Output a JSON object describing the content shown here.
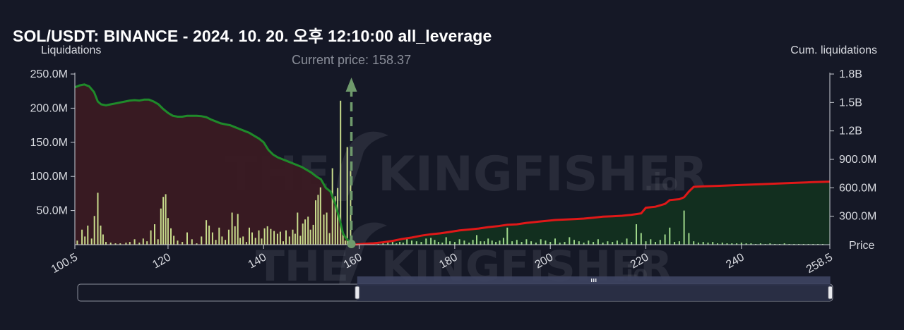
{
  "title": "SOL/USDT: BINANCE - 2024. 10. 20. 오후 12:10:00 all_leverage",
  "watermark": {
    "brand": "THE KINGFISHER",
    "suffix": ".io"
  },
  "chart_data": {
    "type": "bar",
    "current_price_label": "Current price: 158.37",
    "current_price": 158.37,
    "xlabel": "Price",
    "ylabel_left": "Liquidations",
    "ylabel_right": "Cum. liquidations",
    "xlim": [
      100.5,
      258.5
    ],
    "ylim_left": [
      0,
      250000000
    ],
    "ylim_right": [
      0,
      1800000000
    ],
    "x_ticks": [
      "100.5",
      "120",
      "140",
      "160",
      "180",
      "200",
      "220",
      "240",
      "258.5"
    ],
    "x_tick_values": [
      100.5,
      120,
      140,
      160,
      180,
      200,
      220,
      240,
      258.5
    ],
    "y_left_ticks": [
      "50.0M",
      "100.0M",
      "150.0M",
      "200.0M",
      "250.0M"
    ],
    "y_left_tick_values": [
      50000000,
      100000000,
      150000000,
      200000000,
      250000000
    ],
    "y_right_ticks": [
      "300.0M",
      "600.0M",
      "900.0M",
      "1.2B",
      "1.5B",
      "1.8B"
    ],
    "y_right_tick_values": [
      300000000,
      600000000,
      900000000,
      1200000000,
      1500000000,
      1800000000
    ],
    "colors": {
      "bars": "#c8dc8c",
      "bars_right": "#9fd88a",
      "long_cum_line": "#1f8a2a",
      "short_cum_line": "#e01818",
      "long_fill": "#3a1a22",
      "short_fill": "#12301f",
      "current_price_marker": "#6f9a6c"
    },
    "liquidation_bars": [
      [
        101,
        6
      ],
      [
        102,
        22
      ],
      [
        102.6,
        12
      ],
      [
        103.2,
        28
      ],
      [
        104,
        9
      ],
      [
        104.6,
        42
      ],
      [
        105.3,
        76
      ],
      [
        105.9,
        28
      ],
      [
        106.4,
        15
      ],
      [
        107,
        4
      ],
      [
        108,
        3
      ],
      [
        109,
        2
      ],
      [
        110,
        2
      ],
      [
        111.2,
        3
      ],
      [
        112,
        4
      ],
      [
        113,
        8
      ],
      [
        114,
        3
      ],
      [
        114.8,
        9
      ],
      [
        115.6,
        5
      ],
      [
        116.4,
        21
      ],
      [
        117.2,
        30
      ],
      [
        117.9,
        8
      ],
      [
        118.5,
        53
      ],
      [
        119,
        70
      ],
      [
        119.5,
        74
      ],
      [
        120,
        39
      ],
      [
        120.6,
        24
      ],
      [
        121.2,
        13
      ],
      [
        122,
        6
      ],
      [
        123,
        4
      ],
      [
        124,
        18
      ],
      [
        125,
        8
      ],
      [
        126,
        2
      ],
      [
        127,
        12
      ],
      [
        128,
        36
      ],
      [
        128.6,
        28
      ],
      [
        129.3,
        18
      ],
      [
        130,
        7
      ],
      [
        130.7,
        25
      ],
      [
        131.3,
        12
      ],
      [
        132,
        7
      ],
      [
        132.7,
        22
      ],
      [
        133.4,
        47
      ],
      [
        134,
        27
      ],
      [
        134.6,
        45
      ],
      [
        135.1,
        10
      ],
      [
        135.7,
        12
      ],
      [
        136.4,
        4
      ],
      [
        137,
        25
      ],
      [
        137.6,
        18
      ],
      [
        138.3,
        10
      ],
      [
        139,
        21
      ],
      [
        139.6,
        9
      ],
      [
        140.2,
        24
      ],
      [
        140.8,
        27
      ],
      [
        141.5,
        23
      ],
      [
        142.2,
        20
      ],
      [
        142.9,
        16
      ],
      [
        143.5,
        19
      ],
      [
        144.1,
        5
      ],
      [
        144.7,
        21
      ],
      [
        145.4,
        12
      ],
      [
        146.1,
        22
      ],
      [
        146.6,
        16
      ],
      [
        147.1,
        47
      ],
      [
        147.7,
        13
      ],
      [
        148.2,
        31
      ],
      [
        148.7,
        37
      ],
      [
        149.3,
        41
      ],
      [
        149.8,
        22
      ],
      [
        150.4,
        29
      ],
      [
        150.9,
        65
      ],
      [
        151.4,
        73
      ],
      [
        151.9,
        84
      ],
      [
        152.6,
        44
      ],
      [
        153.2,
        47
      ],
      [
        153.8,
        17
      ],
      [
        154.4,
        112
      ],
      [
        155,
        71
      ],
      [
        155.5,
        83
      ],
      [
        156.1,
        211
      ],
      [
        156.6,
        19
      ],
      [
        157.1,
        6
      ],
      [
        157.5,
        143
      ],
      [
        158.2,
        108
      ],
      [
        158.8,
        4
      ],
      [
        159.5,
        1
      ],
      [
        161,
        2
      ],
      [
        162,
        1
      ],
      [
        163,
        2
      ],
      [
        164,
        1
      ],
      [
        165,
        2
      ],
      [
        166,
        3
      ],
      [
        167,
        5
      ],
      [
        167.8,
        2
      ],
      [
        168.5,
        4
      ],
      [
        169.2,
        3
      ],
      [
        170,
        9
      ],
      [
        171,
        6
      ],
      [
        172,
        5
      ],
      [
        173,
        4
      ],
      [
        174,
        9
      ],
      [
        175,
        10
      ],
      [
        175.8,
        7
      ],
      [
        176.6,
        4
      ],
      [
        177.4,
        3
      ],
      [
        178.2,
        11
      ],
      [
        179,
        5
      ],
      [
        180,
        4
      ],
      [
        181,
        8
      ],
      [
        182,
        6
      ],
      [
        183,
        3
      ],
      [
        183.8,
        7
      ],
      [
        184.6,
        14
      ],
      [
        185.4,
        5
      ],
      [
        186.2,
        5
      ],
      [
        187,
        9
      ],
      [
        187.8,
        6
      ],
      [
        188.6,
        4
      ],
      [
        189.4,
        6
      ],
      [
        190.2,
        10
      ],
      [
        191,
        25
      ],
      [
        192,
        5
      ],
      [
        193,
        7
      ],
      [
        194,
        4
      ],
      [
        195,
        8
      ],
      [
        196,
        5
      ],
      [
        197,
        3
      ],
      [
        198,
        8
      ],
      [
        199,
        6
      ],
      [
        200,
        4
      ],
      [
        201,
        9
      ],
      [
        202,
        3
      ],
      [
        203,
        4
      ],
      [
        204,
        11
      ],
      [
        205,
        7
      ],
      [
        206,
        5
      ],
      [
        207,
        3
      ],
      [
        208,
        6
      ],
      [
        209,
        4
      ],
      [
        210,
        8
      ],
      [
        211,
        3
      ],
      [
        212,
        5
      ],
      [
        213,
        4
      ],
      [
        214,
        6
      ],
      [
        215,
        3
      ],
      [
        216,
        9
      ],
      [
        217,
        4
      ],
      [
        218,
        30
      ],
      [
        219,
        17
      ],
      [
        220,
        5
      ],
      [
        221,
        8
      ],
      [
        222,
        4
      ],
      [
        223,
        7
      ],
      [
        224,
        15
      ],
      [
        225,
        25
      ],
      [
        226,
        4
      ],
      [
        227,
        5
      ],
      [
        228,
        50
      ],
      [
        229,
        17
      ],
      [
        230,
        5
      ],
      [
        231,
        3
      ],
      [
        232,
        4
      ],
      [
        233,
        3
      ],
      [
        234,
        4
      ],
      [
        235,
        2
      ],
      [
        236,
        3
      ],
      [
        237,
        2
      ],
      [
        238,
        2
      ],
      [
        239,
        2
      ],
      [
        240,
        3
      ],
      [
        241,
        2
      ],
      [
        242,
        2
      ],
      [
        243,
        1
      ],
      [
        244,
        2
      ],
      [
        245,
        1
      ],
      [
        246,
        2
      ],
      [
        247,
        1
      ],
      [
        248,
        1
      ],
      [
        249,
        2
      ],
      [
        250,
        1
      ],
      [
        251,
        1
      ],
      [
        252,
        1
      ],
      [
        253,
        1
      ],
      [
        254,
        1
      ],
      [
        255,
        1
      ],
      [
        256,
        1
      ],
      [
        257,
        1
      ]
    ],
    "long_cum_curve": [
      [
        100.5,
        1660
      ],
      [
        101.5,
        1680
      ],
      [
        102.5,
        1690
      ],
      [
        103.5,
        1670
      ],
      [
        104.5,
        1610
      ],
      [
        105.3,
        1510
      ],
      [
        106,
        1480
      ],
      [
        107,
        1470
      ],
      [
        108,
        1480
      ],
      [
        109,
        1490
      ],
      [
        110,
        1500
      ],
      [
        111,
        1510
      ],
      [
        112,
        1520
      ],
      [
        113,
        1525
      ],
      [
        114,
        1520
      ],
      [
        115,
        1530
      ],
      [
        116,
        1530
      ],
      [
        117,
        1510
      ],
      [
        118,
        1480
      ],
      [
        119,
        1430
      ],
      [
        120,
        1390
      ],
      [
        121,
        1360
      ],
      [
        122,
        1350
      ],
      [
        123,
        1350
      ],
      [
        124,
        1360
      ],
      [
        125,
        1360
      ],
      [
        126,
        1360
      ],
      [
        127,
        1355
      ],
      [
        128,
        1345
      ],
      [
        129,
        1320
      ],
      [
        130,
        1300
      ],
      [
        131,
        1280
      ],
      [
        132,
        1270
      ],
      [
        133,
        1260
      ],
      [
        134,
        1240
      ],
      [
        135,
        1220
      ],
      [
        136,
        1200
      ],
      [
        137,
        1180
      ],
      [
        138,
        1150
      ],
      [
        139,
        1120
      ],
      [
        140,
        1080
      ],
      [
        141,
        1000
      ],
      [
        142,
        950
      ],
      [
        143,
        920
      ],
      [
        144,
        900
      ],
      [
        145,
        880
      ],
      [
        146,
        860
      ],
      [
        147,
        840
      ],
      [
        148,
        820
      ],
      [
        149,
        790
      ],
      [
        150,
        760
      ],
      [
        151,
        720
      ],
      [
        152,
        690
      ],
      [
        153,
        600
      ],
      [
        154,
        560
      ],
      [
        155,
        430
      ],
      [
        156,
        250
      ],
      [
        156.6,
        120
      ],
      [
        157.2,
        70
      ],
      [
        158,
        30
      ],
      [
        158.6,
        5
      ],
      [
        159.2,
        0
      ]
    ],
    "short_cum_curve": [
      [
        159,
        0
      ],
      [
        161,
        10
      ],
      [
        163,
        15
      ],
      [
        165,
        25
      ],
      [
        167,
        40
      ],
      [
        169,
        60
      ],
      [
        171,
        75
      ],
      [
        173,
        95
      ],
      [
        175,
        110
      ],
      [
        177,
        120
      ],
      [
        179,
        135
      ],
      [
        181,
        150
      ],
      [
        183,
        160
      ],
      [
        185,
        170
      ],
      [
        187,
        185
      ],
      [
        189,
        195
      ],
      [
        191,
        210
      ],
      [
        193,
        215
      ],
      [
        195,
        230
      ],
      [
        197,
        240
      ],
      [
        199,
        250
      ],
      [
        201,
        260
      ],
      [
        203,
        265
      ],
      [
        205,
        270
      ],
      [
        207,
        275
      ],
      [
        209,
        285
      ],
      [
        211,
        295
      ],
      [
        213,
        300
      ],
      [
        215,
        305
      ],
      [
        217,
        315
      ],
      [
        219,
        330
      ],
      [
        220,
        390
      ],
      [
        222,
        400
      ],
      [
        224,
        430
      ],
      [
        225,
        470
      ],
      [
        227,
        480
      ],
      [
        228,
        500
      ],
      [
        229,
        560
      ],
      [
        230,
        610
      ],
      [
        232,
        615
      ],
      [
        235,
        620
      ],
      [
        240,
        630
      ],
      [
        245,
        640
      ],
      [
        250,
        650
      ],
      [
        255,
        660
      ],
      [
        258.5,
        665
      ]
    ],
    "range_slider": {
      "visible_min": 100.5,
      "visible_max": 258.5,
      "handle_min": 159,
      "handle_max": 258
    }
  }
}
